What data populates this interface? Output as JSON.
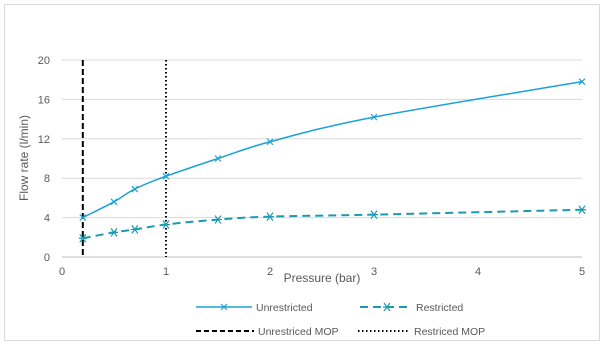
{
  "chart_data": {
    "type": "line",
    "title": "",
    "xlabel": "Pressure (bar)",
    "ylabel": "Flow rate (l/min)",
    "xlim": [
      0,
      5
    ],
    "ylim": [
      0,
      20
    ],
    "x_ticks": [
      "0",
      "1",
      "2",
      "3",
      "4",
      "5"
    ],
    "y_ticks": [
      "0",
      "4",
      "8",
      "12",
      "16",
      "20"
    ],
    "grid": "horizontal",
    "legend_position": "bottom",
    "series": [
      {
        "name": "Unrestricted",
        "color": "#1ba1d9",
        "style": "solid",
        "marker": "x",
        "x": [
          0.2,
          0.5,
          0.7,
          1.0,
          1.5,
          2.0,
          3.0,
          5.0
        ],
        "y": [
          4.0,
          5.6,
          6.9,
          8.2,
          10.0,
          11.7,
          14.2,
          17.8
        ]
      },
      {
        "name": "Restricted",
        "color": "#1a9bb0",
        "style": "dashed",
        "marker": "asterisk",
        "x": [
          0.2,
          0.5,
          0.7,
          1.0,
          1.5,
          2.0,
          3.0,
          5.0
        ],
        "y": [
          1.9,
          2.5,
          2.8,
          3.3,
          3.8,
          4.1,
          4.3,
          4.8
        ]
      }
    ],
    "reference_lines": [
      {
        "name": "Unrestriced MOP",
        "x": 0.2,
        "style": "dashed",
        "color": "#000000"
      },
      {
        "name": "Restriced MOP",
        "x": 1.0,
        "style": "dotted",
        "color": "#000000"
      }
    ]
  }
}
